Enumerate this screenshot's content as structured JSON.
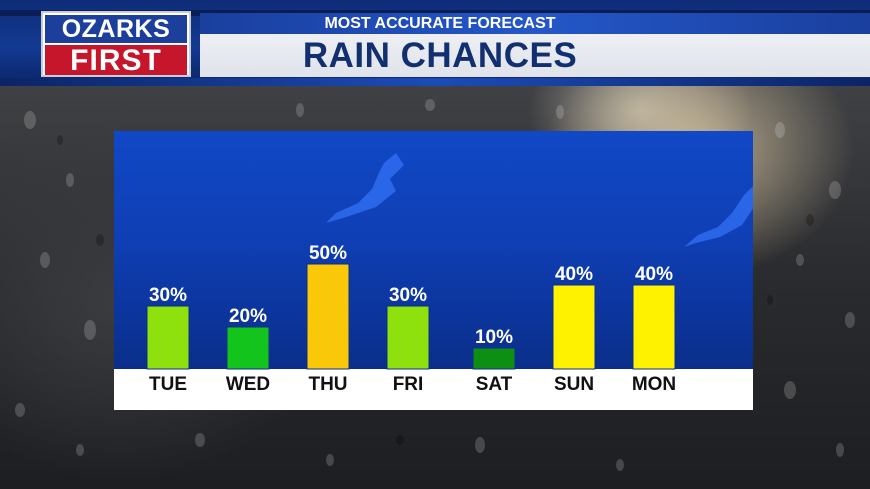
{
  "header": {
    "subtitle": "MOST ACCURATE FORECAST",
    "title": "RAIN CHANCES"
  },
  "logo": {
    "line1": "OZARKS",
    "line2": "FIRST"
  },
  "colors": {
    "header_blue": "#12306f",
    "logo_blue": "#1b3f9a",
    "logo_red": "#c5162c",
    "panel_blue": "#0f3fb5"
  },
  "chart_data": {
    "type": "bar",
    "title": "RAIN CHANCES",
    "categories": [
      "TUE",
      "WED",
      "THU",
      "FRI",
      "SAT",
      "SUN",
      "MON"
    ],
    "values": [
      30,
      20,
      50,
      30,
      10,
      40,
      40
    ],
    "value_labels": [
      "30%",
      "20%",
      "50%",
      "30%",
      "10%",
      "40%",
      "40%"
    ],
    "bar_colors": [
      "#8ee10c",
      "#12c41c",
      "#f9c808",
      "#8ee10c",
      "#0d8f14",
      "#fff200",
      "#fff200"
    ],
    "unit": "%",
    "ylim": [
      0,
      60
    ],
    "grid": false,
    "legend": "none"
  }
}
